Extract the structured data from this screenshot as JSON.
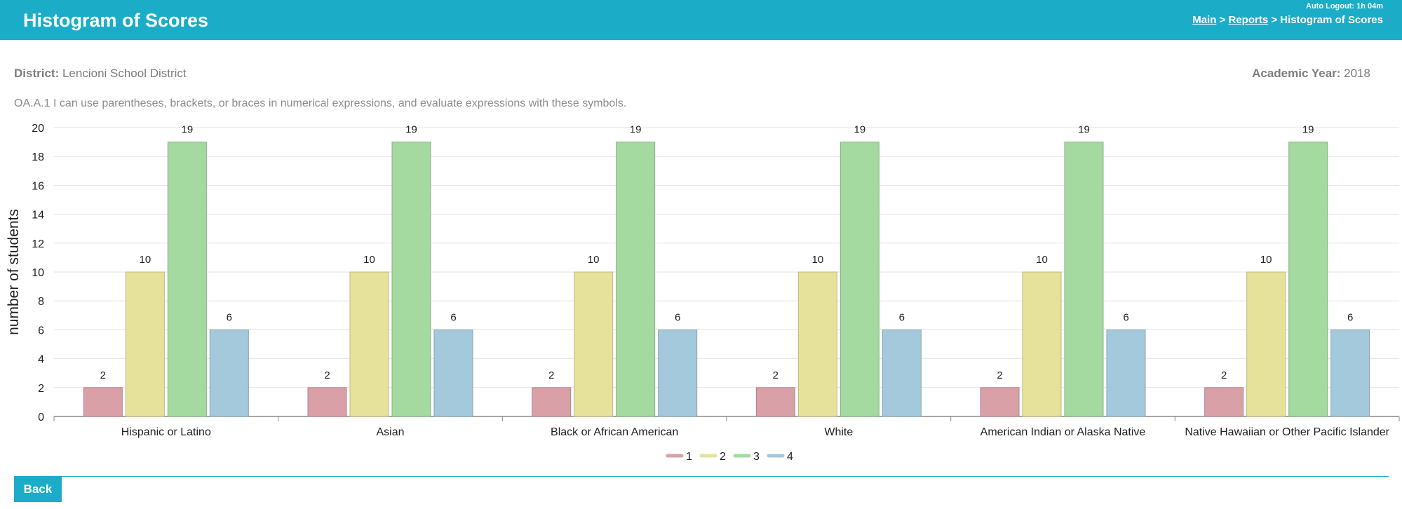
{
  "header": {
    "title": "Histogram of Scores",
    "auto_logout": "Auto Logout: 1h 04m",
    "breadcrumb": {
      "main": "Main",
      "reports": "Reports",
      "current": "Histogram of Scores",
      "separator": ">"
    }
  },
  "meta": {
    "district_label": "District:",
    "district_value": "Lencioni School District",
    "year_label": "Academic Year:",
    "year_value": "2018"
  },
  "standard_text": "OA.A.1 I can use parentheses, brackets, or braces in numerical expressions, and evaluate expressions with these symbols.",
  "footer": {
    "back_label": "Back"
  },
  "colors": {
    "header": "#1badc8",
    "series": [
      "#d9a0a8",
      "#e6e29c",
      "#a4d9a0",
      "#a4c8dc"
    ]
  },
  "chart_data": {
    "type": "bar",
    "ylabel": "number of students",
    "ylim": [
      0,
      20
    ],
    "yticks": [
      0,
      2,
      4,
      6,
      8,
      10,
      12,
      14,
      16,
      18,
      20
    ],
    "grid": true,
    "legend_position": "bottom",
    "categories": [
      "Hispanic or Latino",
      "Asian",
      "Black or African American",
      "White",
      "American Indian or Alaska Native",
      "Native Hawaiian or Other Pacific Islander"
    ],
    "series": [
      {
        "name": "1",
        "color": "#d9a0a8",
        "values": [
          2,
          2,
          2,
          2,
          2,
          2
        ]
      },
      {
        "name": "2",
        "color": "#e6e29c",
        "values": [
          10,
          10,
          10,
          10,
          10,
          10
        ]
      },
      {
        "name": "3",
        "color": "#a4d9a0",
        "values": [
          19,
          19,
          19,
          19,
          19,
          19
        ]
      },
      {
        "name": "4",
        "color": "#a4c8dc",
        "values": [
          6,
          6,
          6,
          6,
          6,
          6
        ]
      }
    ]
  }
}
